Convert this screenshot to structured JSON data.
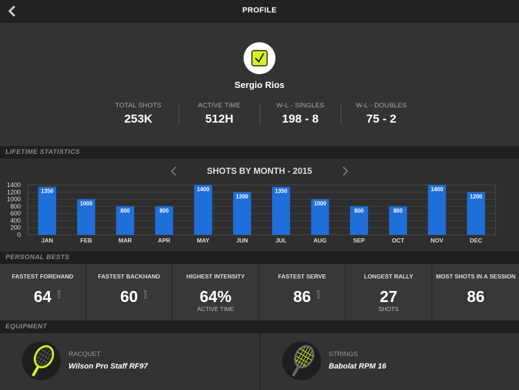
{
  "header": {
    "title": "PROFILE",
    "back_icon": "chevron-left-icon"
  },
  "profile": {
    "name": "Sergio Rios",
    "avatar_icon": "brand-logo-icon",
    "stats": [
      {
        "label": "TOTAL SHOTS",
        "value": "253K"
      },
      {
        "label": "ACTIVE TIME",
        "value": "512H"
      },
      {
        "label": "W-L - SINGLES",
        "value": "198 - 8"
      },
      {
        "label": "W-L - DOUBLES",
        "value": "75 - 2"
      }
    ]
  },
  "sections": {
    "lifetime": "LIFETIME STATISTICS",
    "bests": "PERSONAL BESTS",
    "equipment": "EQUIPMENT"
  },
  "chart": {
    "title": "SHOTS BY MONTH - 2015",
    "prev_icon": "chevron-left-icon",
    "next_icon": "chevron-right-icon"
  },
  "chart_data": {
    "type": "bar",
    "title": "SHOTS BY MONTH - 2015",
    "categories": [
      "JAN",
      "FEB",
      "MAR",
      "APR",
      "MAY",
      "JUN",
      "JUL",
      "AUG",
      "SEP",
      "OCT",
      "NOV",
      "DEC"
    ],
    "values": [
      1350,
      1000,
      800,
      800,
      1400,
      1200,
      1350,
      1000,
      800,
      800,
      1400,
      1200
    ],
    "yticks": [
      "0",
      "200",
      "400",
      "600",
      "800",
      "1000",
      "1200",
      "1400"
    ],
    "ylim": [
      0,
      1400
    ],
    "grid": true,
    "bar_color": "#1e6fd9"
  },
  "bests": [
    {
      "label": "FASTEST FOREHAND",
      "value": "64",
      "unit": "MPH"
    },
    {
      "label": "FASTEST BACKHAND",
      "value": "60",
      "unit": "MPH"
    },
    {
      "label": "HIGHEST INTENSITY",
      "value": "64%",
      "sub": "ACTIVE TIME"
    },
    {
      "label": "FASTEST SERVE",
      "value": "86",
      "unit": "MPH"
    },
    {
      "label": "LONGEST RALLY",
      "value": "27",
      "sub": "SHOTS"
    },
    {
      "label": "MOST SHOTS IN A SESSION",
      "value": "86"
    }
  ],
  "equipment": [
    {
      "label": "RACQUET",
      "name": "Wilson Pro Staff RF97",
      "icon": "racquet-icon"
    },
    {
      "label": "STRINGS",
      "name": "Babolat RPM 16",
      "icon": "strings-icon"
    }
  ],
  "colors": {
    "accent": "#1e6fd9",
    "brand": "#d7f21e",
    "background": "#2e2e2e"
  }
}
